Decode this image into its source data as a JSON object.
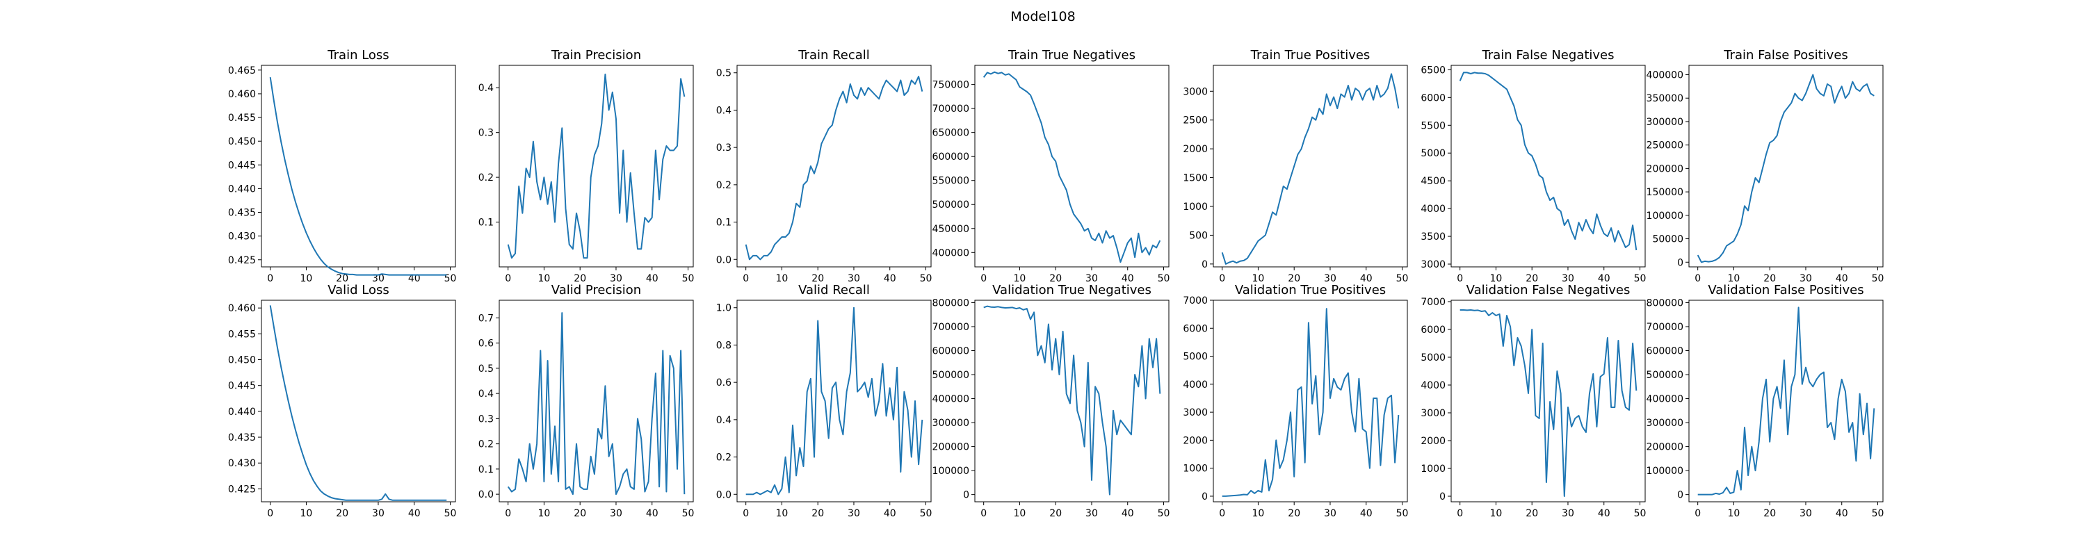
{
  "figure": {
    "title": "Model108",
    "line_color": "#1f77b4"
  },
  "chart_data": [
    {
      "type": "line",
      "title": "Train Loss",
      "xticks": [
        0,
        10,
        20,
        30,
        40,
        50
      ],
      "ylim": [
        0.4235,
        0.466
      ],
      "yticks": [
        0.425,
        0.43,
        0.435,
        0.44,
        0.445,
        0.45,
        0.455,
        0.46,
        0.465
      ],
      "ytick_labels": [
        "0.425",
        "0.430",
        "0.435",
        "0.440",
        "0.445",
        "0.450",
        "0.455",
        "0.460",
        "0.465"
      ],
      "y": [
        0.4635,
        0.4585,
        0.454,
        0.4499,
        0.4462,
        0.4429,
        0.4399,
        0.4372,
        0.4348,
        0.4326,
        0.4307,
        0.429,
        0.4275,
        0.4262,
        0.4251,
        0.4242,
        0.4235,
        0.423,
        0.4226,
        0.4223,
        0.4221,
        0.422,
        0.4219,
        0.4219,
        0.4218,
        0.4218,
        0.4218,
        0.4218,
        0.4218,
        0.4218,
        0.4218,
        0.422,
        0.4219,
        0.4218,
        0.4218,
        0.4218,
        0.4218,
        0.4218,
        0.4218,
        0.4218,
        0.4218,
        0.4218,
        0.4218,
        0.4218,
        0.4218,
        0.4218,
        0.4218,
        0.4218,
        0.4218,
        0.4218
      ]
    },
    {
      "type": "line",
      "title": "Train Precision",
      "xticks": [
        0,
        10,
        20,
        30,
        40,
        50
      ],
      "ylim": [
        0.0,
        0.45
      ],
      "yticks": [
        0.1,
        0.2,
        0.3,
        0.4
      ],
      "ytick_labels": [
        "0.1",
        "0.2",
        "0.3",
        "0.4"
      ],
      "y": [
        0.05,
        0.02,
        0.03,
        0.18,
        0.12,
        0.22,
        0.2,
        0.28,
        0.19,
        0.15,
        0.2,
        0.14,
        0.19,
        0.1,
        0.23,
        0.31,
        0.13,
        0.05,
        0.04,
        0.12,
        0.08,
        0.02,
        0.02,
        0.2,
        0.25,
        0.27,
        0.32,
        0.43,
        0.35,
        0.39,
        0.33,
        0.12,
        0.26,
        0.1,
        0.21,
        0.12,
        0.04,
        0.04,
        0.11,
        0.1,
        0.11,
        0.26,
        0.15,
        0.24,
        0.27,
        0.26,
        0.26,
        0.27,
        0.42,
        0.38
      ]
    },
    {
      "type": "line",
      "title": "Train Recall",
      "xticks": [
        0,
        10,
        20,
        30,
        40,
        50
      ],
      "ylim": [
        -0.02,
        0.52
      ],
      "yticks": [
        0.0,
        0.1,
        0.2,
        0.3,
        0.4,
        0.5
      ],
      "ytick_labels": [
        "0.0",
        "0.1",
        "0.2",
        "0.3",
        "0.4",
        "0.5"
      ],
      "y": [
        0.04,
        0.0,
        0.01,
        0.01,
        0.0,
        0.01,
        0.01,
        0.02,
        0.04,
        0.05,
        0.06,
        0.06,
        0.07,
        0.1,
        0.15,
        0.14,
        0.2,
        0.21,
        0.25,
        0.23,
        0.26,
        0.31,
        0.33,
        0.35,
        0.36,
        0.4,
        0.43,
        0.45,
        0.42,
        0.47,
        0.44,
        0.43,
        0.46,
        0.44,
        0.46,
        0.45,
        0.44,
        0.43,
        0.46,
        0.48,
        0.47,
        0.46,
        0.45,
        0.48,
        0.44,
        0.45,
        0.48,
        0.47,
        0.49,
        0.45
      ]
    },
    {
      "type": "line",
      "title": "Train True Negatives",
      "xticks": [
        0,
        10,
        20,
        30,
        40,
        50
      ],
      "ylim": [
        370000,
        790000
      ],
      "yticks": [
        400000,
        450000,
        500000,
        550000,
        600000,
        650000,
        700000,
        750000
      ],
      "ytick_labels": [
        "400000",
        "450000",
        "500000",
        "550000",
        "600000",
        "650000",
        "700000",
        "750000"
      ],
      "y": [
        765000,
        775000,
        772000,
        776000,
        773000,
        775000,
        770000,
        772000,
        766000,
        760000,
        745000,
        740000,
        735000,
        728000,
        710000,
        690000,
        670000,
        640000,
        625000,
        600000,
        590000,
        560000,
        545000,
        530000,
        500000,
        480000,
        470000,
        460000,
        445000,
        450000,
        430000,
        425000,
        440000,
        420000,
        445000,
        430000,
        435000,
        410000,
        380000,
        400000,
        420000,
        430000,
        390000,
        440000,
        400000,
        410000,
        395000,
        415000,
        410000,
        425000
      ]
    },
    {
      "type": "line",
      "title": "Train True Positives",
      "xticks": [
        0,
        10,
        20,
        30,
        40,
        50
      ],
      "ylim": [
        -50,
        3450
      ],
      "yticks": [
        0,
        500,
        1000,
        1500,
        2000,
        2500,
        3000
      ],
      "ytick_labels": [
        "0",
        "500",
        "1000",
        "1500",
        "2000",
        "2500",
        "3000"
      ],
      "y": [
        200,
        0,
        30,
        50,
        20,
        50,
        60,
        100,
        200,
        300,
        400,
        450,
        500,
        700,
        900,
        850,
        1100,
        1350,
        1300,
        1500,
        1700,
        1900,
        2000,
        2200,
        2350,
        2550,
        2500,
        2700,
        2600,
        2950,
        2750,
        2900,
        2700,
        2950,
        2900,
        3100,
        2850,
        3050,
        3000,
        2850,
        3000,
        3050,
        2850,
        3100,
        2900,
        2950,
        3050,
        3300,
        3050,
        2700
      ]
    },
    {
      "type": "line",
      "title": "Train False Negatives",
      "xticks": [
        0,
        10,
        20,
        30,
        40,
        50
      ],
      "ylim": [
        2950,
        6580
      ],
      "yticks": [
        3000,
        3500,
        4000,
        4500,
        5000,
        5500,
        6000,
        6500
      ],
      "ytick_labels": [
        "3000",
        "3500",
        "4000",
        "4500",
        "5000",
        "5500",
        "6000",
        "6500"
      ],
      "y": [
        6300,
        6450,
        6450,
        6430,
        6450,
        6440,
        6440,
        6430,
        6400,
        6350,
        6300,
        6250,
        6200,
        6150,
        6000,
        5850,
        5600,
        5500,
        5150,
        5000,
        4950,
        4800,
        4600,
        4550,
        4300,
        4150,
        4200,
        4000,
        3950,
        3700,
        3800,
        3600,
        3450,
        3750,
        3600,
        3800,
        3650,
        3550,
        3900,
        3700,
        3550,
        3500,
        3650,
        3400,
        3600,
        3450,
        3300,
        3350,
        3700,
        3250
      ]
    },
    {
      "type": "line",
      "title": "Train False Positives",
      "xticks": [
        0,
        10,
        20,
        30,
        40,
        50
      ],
      "ylim": [
        -10000,
        420000
      ],
      "yticks": [
        0,
        50000,
        100000,
        150000,
        200000,
        250000,
        300000,
        350000,
        400000
      ],
      "ytick_labels": [
        "0",
        "50000",
        "100000",
        "150000",
        "200000",
        "250000",
        "300000",
        "350000",
        "400000"
      ],
      "y": [
        15000,
        0,
        2000,
        1000,
        2000,
        5000,
        10000,
        20000,
        35000,
        40000,
        45000,
        60000,
        80000,
        120000,
        110000,
        150000,
        180000,
        170000,
        200000,
        230000,
        255000,
        260000,
        270000,
        300000,
        320000,
        330000,
        340000,
        360000,
        350000,
        345000,
        360000,
        380000,
        400000,
        370000,
        360000,
        355000,
        380000,
        375000,
        340000,
        360000,
        375000,
        350000,
        360000,
        385000,
        370000,
        365000,
        375000,
        380000,
        360000,
        355000
      ]
    },
    {
      "type": "line",
      "title": "Valid Loss",
      "xticks": [
        0,
        10,
        20,
        30,
        40,
        50
      ],
      "ylim": [
        0.4225,
        0.4615
      ],
      "yticks": [
        0.425,
        0.43,
        0.435,
        0.44,
        0.445,
        0.45,
        0.455,
        0.46
      ],
      "ytick_labels": [
        "0.425",
        "0.430",
        "0.435",
        "0.440",
        "0.445",
        "0.450",
        "0.455",
        "0.460"
      ],
      "y": [
        0.4605,
        0.4563,
        0.4523,
        0.4486,
        0.4452,
        0.442,
        0.4391,
        0.4364,
        0.4339,
        0.4317,
        0.4297,
        0.428,
        0.4266,
        0.4255,
        0.4246,
        0.424,
        0.4236,
        0.4233,
        0.4231,
        0.423,
        0.4229,
        0.4228,
        0.4228,
        0.4228,
        0.4228,
        0.4228,
        0.4228,
        0.4228,
        0.4228,
        0.4228,
        0.4228,
        0.423,
        0.424,
        0.423,
        0.4228,
        0.4228,
        0.4228,
        0.4228,
        0.4228,
        0.4228,
        0.4228,
        0.4228,
        0.4228,
        0.4228,
        0.4228,
        0.4228,
        0.4228,
        0.4228,
        0.4228,
        0.4228
      ]
    },
    {
      "type": "line",
      "title": "Valid Precision",
      "xticks": [
        0,
        10,
        20,
        30,
        40,
        50
      ],
      "ylim": [
        -0.03,
        0.77
      ],
      "yticks": [
        0.0,
        0.1,
        0.2,
        0.3,
        0.4,
        0.5,
        0.6,
        0.7
      ],
      "ytick_labels": [
        "0.0",
        "0.1",
        "0.2",
        "0.3",
        "0.4",
        "0.5",
        "0.6",
        "0.7"
      ],
      "y": [
        0.03,
        0.01,
        0.02,
        0.14,
        0.1,
        0.05,
        0.2,
        0.1,
        0.2,
        0.57,
        0.05,
        0.53,
        0.08,
        0.27,
        0.05,
        0.72,
        0.02,
        0.03,
        0.0,
        0.2,
        0.03,
        0.02,
        0.02,
        0.15,
        0.08,
        0.26,
        0.22,
        0.43,
        0.15,
        0.2,
        0.0,
        0.03,
        0.08,
        0.1,
        0.03,
        0.02,
        0.3,
        0.22,
        0.01,
        0.05,
        0.3,
        0.48,
        0.03,
        0.57,
        0.01,
        0.55,
        0.5,
        0.1,
        0.57,
        0.0
      ]
    },
    {
      "type": "line",
      "title": "Valid Recall",
      "xticks": [
        0,
        10,
        20,
        30,
        40,
        50
      ],
      "ylim": [
        -0.04,
        1.04
      ],
      "yticks": [
        0.0,
        0.2,
        0.4,
        0.6,
        0.8,
        1.0
      ],
      "ytick_labels": [
        "0.0",
        "0.2",
        "0.4",
        "0.6",
        "0.8",
        "1.0"
      ],
      "y": [
        0.0,
        0.0,
        0.0,
        0.01,
        0.0,
        0.01,
        0.02,
        0.01,
        0.05,
        0.0,
        0.03,
        0.2,
        0.01,
        0.37,
        0.1,
        0.25,
        0.15,
        0.55,
        0.62,
        0.2,
        0.93,
        0.55,
        0.5,
        0.3,
        0.57,
        0.6,
        0.4,
        0.32,
        0.55,
        0.65,
        1.0,
        0.55,
        0.57,
        0.6,
        0.52,
        0.62,
        0.42,
        0.5,
        0.7,
        0.42,
        0.57,
        0.4,
        0.68,
        0.12,
        0.55,
        0.45,
        0.2,
        0.5,
        0.16,
        0.4
      ]
    },
    {
      "type": "line",
      "title": "Validation True Negatives",
      "xticks": [
        0,
        10,
        20,
        30,
        40,
        50
      ],
      "ylim": [
        -30000,
        810000
      ],
      "yticks": [
        0,
        100000,
        200000,
        300000,
        400000,
        500000,
        600000,
        700000,
        800000
      ],
      "ytick_labels": [
        "0",
        "100000",
        "200000",
        "300000",
        "400000",
        "500000",
        "600000",
        "700000",
        "800000"
      ],
      "y": [
        780000,
        785000,
        782000,
        781000,
        783000,
        780000,
        778000,
        779000,
        780000,
        775000,
        778000,
        770000,
        775000,
        730000,
        760000,
        580000,
        620000,
        550000,
        710000,
        520000,
        650000,
        500000,
        680000,
        420000,
        380000,
        580000,
        350000,
        300000,
        200000,
        550000,
        60000,
        450000,
        420000,
        300000,
        200000,
        0,
        350000,
        250000,
        310000,
        290000,
        270000,
        250000,
        500000,
        450000,
        620000,
        400000,
        650000,
        530000,
        650000,
        420000
      ]
    },
    {
      "type": "line",
      "title": "Validation True Positives",
      "xticks": [
        0,
        10,
        20,
        30,
        40,
        50
      ],
      "ylim": [
        -200,
        7000
      ],
      "yticks": [
        0,
        1000,
        2000,
        3000,
        4000,
        5000,
        6000,
        7000
      ],
      "ytick_labels": [
        "0",
        "1000",
        "2000",
        "3000",
        "4000",
        "5000",
        "6000",
        "7000"
      ],
      "y": [
        0,
        0,
        10,
        20,
        30,
        40,
        60,
        50,
        200,
        100,
        200,
        150,
        1300,
        200,
        600,
        2000,
        1000,
        1300,
        2000,
        3000,
        700,
        3800,
        3900,
        1200,
        6200,
        3300,
        4300,
        2200,
        3000,
        6700,
        3500,
        4200,
        3900,
        3800,
        4200,
        4400,
        3000,
        2300,
        4200,
        2400,
        2300,
        1000,
        3500,
        3500,
        1100,
        2900,
        3500,
        3600,
        1200,
        2900
      ]
    },
    {
      "type": "line",
      "title": "Validation False Negatives",
      "xticks": [
        0,
        10,
        20,
        30,
        40,
        50
      ],
      "ylim": [
        -200,
        7050
      ],
      "yticks": [
        0,
        1000,
        2000,
        3000,
        4000,
        5000,
        6000,
        7000
      ],
      "ytick_labels": [
        "0",
        "1000",
        "2000",
        "3000",
        "4000",
        "5000",
        "6000",
        "7000"
      ],
      "y": [
        6700,
        6700,
        6690,
        6700,
        6680,
        6690,
        6650,
        6670,
        6500,
        6600,
        6500,
        6550,
        5400,
        6500,
        6100,
        4700,
        5700,
        5400,
        4700,
        3700,
        6000,
        2900,
        2800,
        5500,
        500,
        3400,
        2400,
        4500,
        3700,
        0,
        3200,
        2500,
        2800,
        2900,
        2500,
        2300,
        3700,
        4400,
        2500,
        4300,
        4400,
        5700,
        3200,
        3200,
        5600,
        3800,
        3200,
        3100,
        5500,
        3800
      ]
    },
    {
      "type": "line",
      "title": "Validation False Positives",
      "xticks": [
        0,
        10,
        20,
        30,
        40,
        50
      ],
      "ylim": [
        -30000,
        810000
      ],
      "yticks": [
        0,
        100000,
        200000,
        300000,
        400000,
        500000,
        600000,
        700000,
        800000
      ],
      "ytick_labels": [
        "0",
        "100000",
        "200000",
        "300000",
        "400000",
        "500000",
        "600000",
        "700000",
        "800000"
      ],
      "y": [
        0,
        0,
        0,
        0,
        0,
        5000,
        2000,
        8000,
        30000,
        5000,
        10000,
        100000,
        20000,
        280000,
        80000,
        200000,
        100000,
        220000,
        400000,
        480000,
        220000,
        400000,
        450000,
        360000,
        560000,
        250000,
        450000,
        500000,
        780000,
        460000,
        530000,
        470000,
        450000,
        480000,
        500000,
        510000,
        280000,
        300000,
        230000,
        400000,
        480000,
        430000,
        260000,
        300000,
        140000,
        420000,
        250000,
        380000,
        150000,
        360000
      ]
    }
  ]
}
